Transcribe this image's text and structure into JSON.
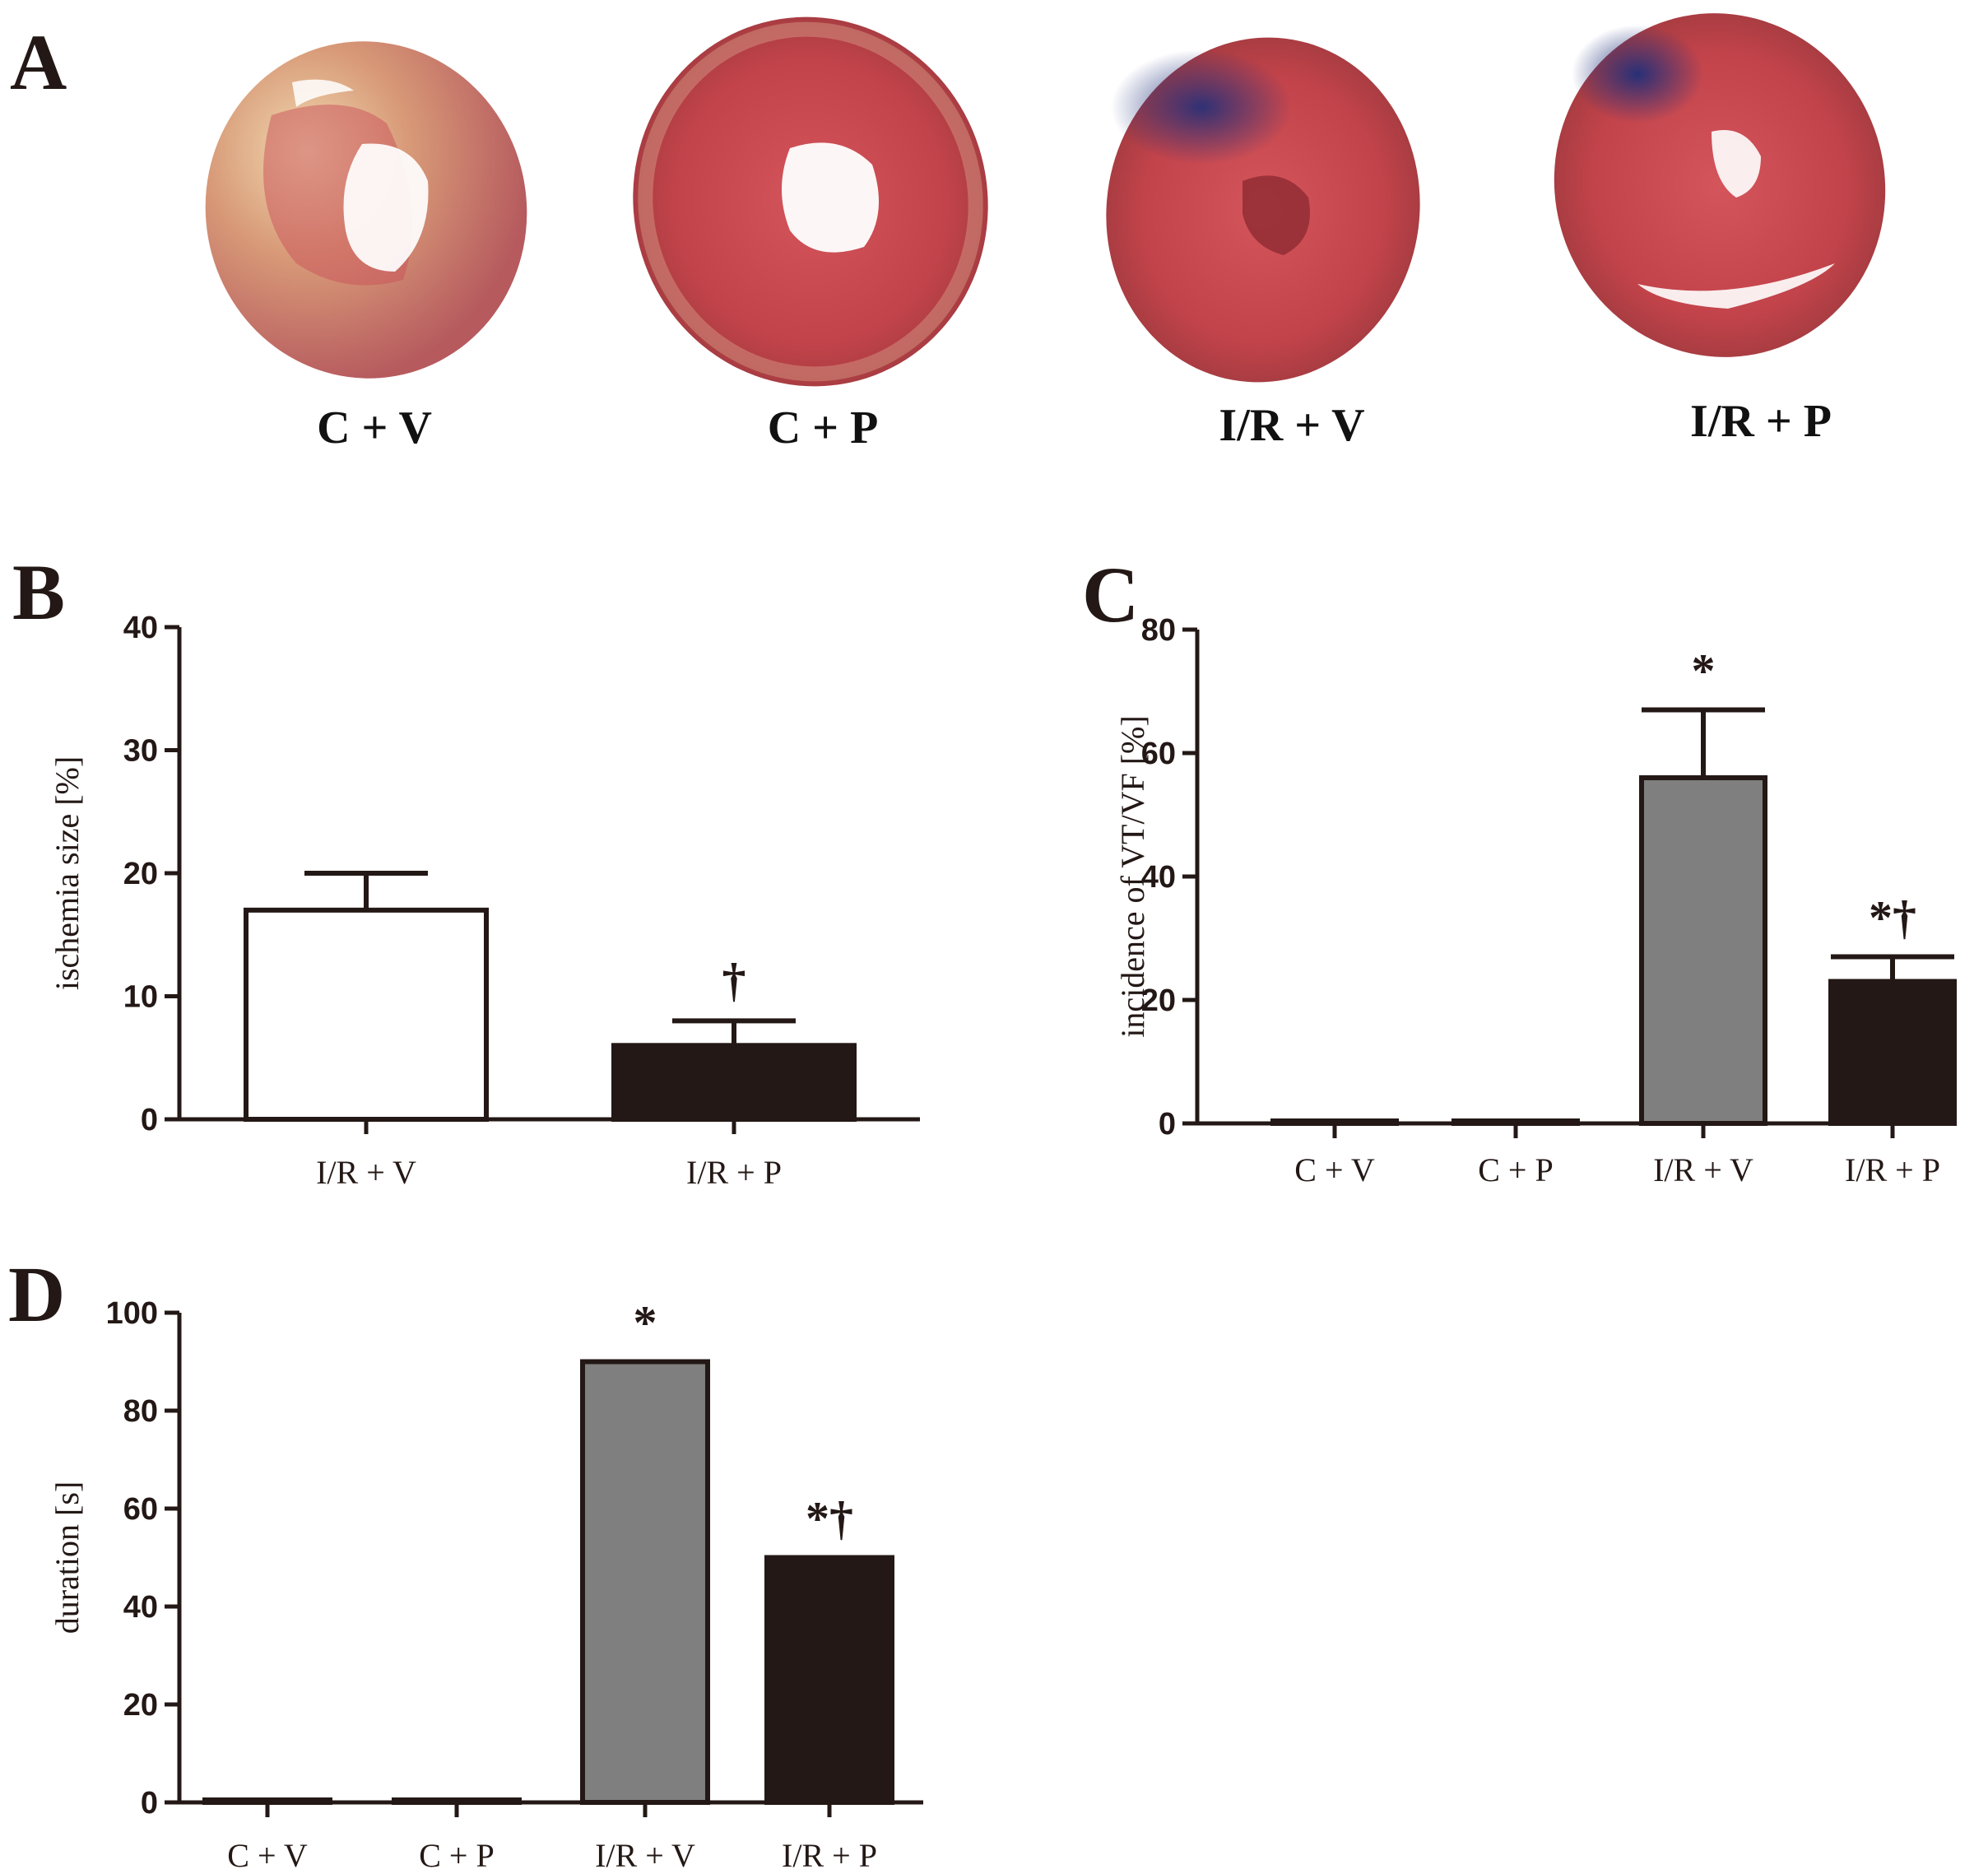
{
  "panel_a": {
    "letter": "A",
    "photos": [
      {
        "label": "C + V"
      },
      {
        "label": "C + P"
      },
      {
        "label": "I/R + V"
      },
      {
        "label": "I/R + P"
      }
    ]
  },
  "colors": {
    "axis": "#231815",
    "vehicle_control": "#ffffff",
    "ir_vehicle": "#7f7f7f",
    "ir_p": "#231815",
    "tissue": "#c94a4f",
    "tissue_pale": "#e3b58a",
    "stain_blue": "#243a8c"
  },
  "chart_data": [
    {
      "letter": "B",
      "type": "bar",
      "title": "",
      "xlabel": "",
      "ylabel": "ischemia size [%]",
      "ylim": [
        0,
        40
      ],
      "yticks": [
        "0",
        "10",
        "20",
        "30",
        "40"
      ],
      "categories": [
        "I/R + V",
        "I/R + P"
      ],
      "values": [
        17,
        6
      ],
      "errors": [
        3,
        2
      ],
      "fills": [
        "#ffffff",
        "#231815"
      ],
      "annotations": [
        "",
        "†"
      ]
    },
    {
      "letter": "C",
      "type": "bar",
      "title": "",
      "xlabel": "",
      "ylabel": "incidence of VT/VF [%]",
      "ylim": [
        0,
        80
      ],
      "yticks": [
        "0",
        "20",
        "40",
        "60",
        "80"
      ],
      "categories": [
        "C + V",
        "C + P",
        "I/R + V",
        "I/R + P"
      ],
      "values": [
        0,
        0,
        56,
        23
      ],
      "errors": [
        0,
        0,
        11,
        4
      ],
      "fills": [
        "#ffffff",
        "#ffffff",
        "#7f7f7f",
        "#231815"
      ],
      "annotations": [
        "",
        "",
        "*",
        "*†"
      ]
    },
    {
      "letter": "D",
      "type": "bar",
      "title": "",
      "xlabel": "",
      "ylabel": "duration [s]",
      "ylim": [
        0,
        100
      ],
      "yticks": [
        "0",
        "20",
        "40",
        "60",
        "80",
        "100"
      ],
      "categories": [
        "C + V",
        "C + P",
        "I/R + V",
        "I/R + P"
      ],
      "values": [
        0,
        0,
        90,
        50
      ],
      "errors": [
        0,
        0,
        0,
        0
      ],
      "fills": [
        "#ffffff",
        "#ffffff",
        "#7f7f7f",
        "#231815"
      ],
      "annotations": [
        "",
        "",
        "*",
        "*†"
      ]
    }
  ]
}
